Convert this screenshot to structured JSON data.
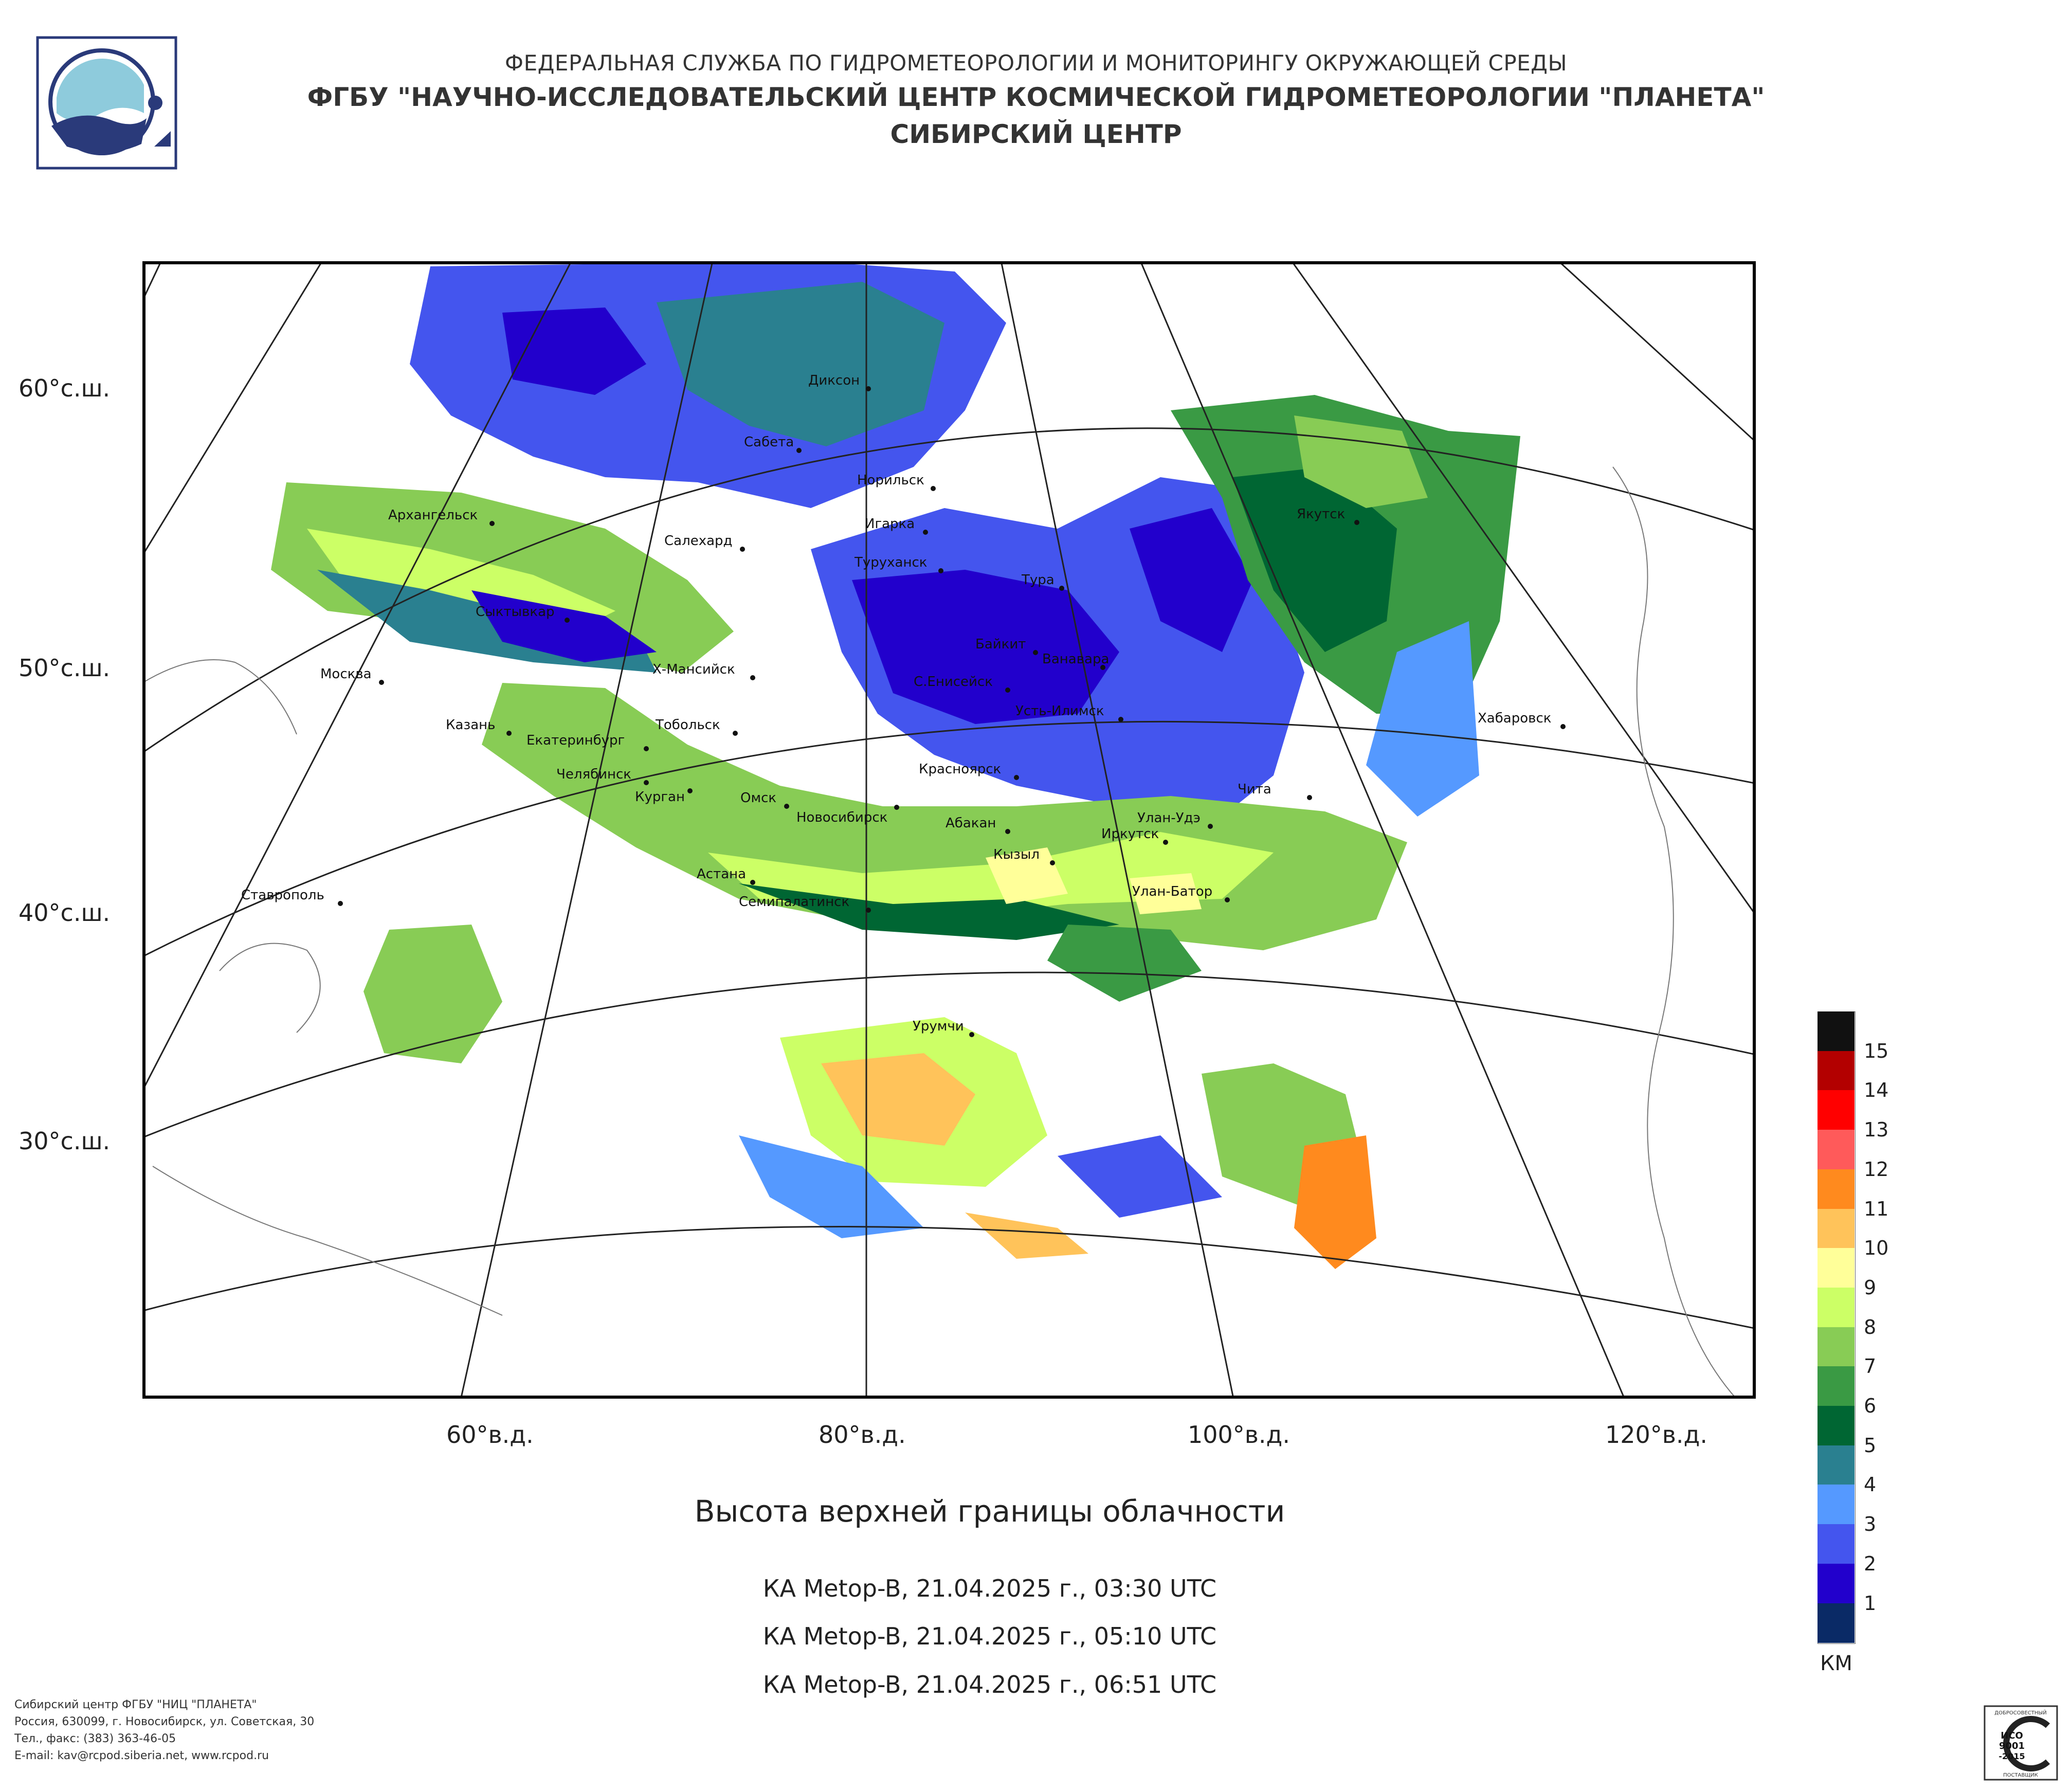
{
  "header": {
    "line1": "ФЕДЕРАЛЬНАЯ СЛУЖБА ПО ГИДРОМЕТЕОРОЛОГИИ И МОНИТОРИНГУ ОКРУЖАЮЩЕЙ СРЕДЫ",
    "line2": "ФГБУ \"НАУЧНО-ИССЛЕДОВАТЕЛЬСКИЙ ЦЕНТР КОСМИЧЕСКОЙ ГИДРОМЕТЕОРОЛОГИИ \"ПЛАНЕТА\"",
    "line3": "СИБИРСКИЙ ЦЕНТР"
  },
  "map": {
    "title": "Высота верхней границы облачности",
    "lat_labels": [
      "60°с.ш.",
      "50°с.ш.",
      "40°с.ш.",
      "30°с.ш."
    ],
    "lon_labels": [
      "60°в.д.",
      "80°в.д.",
      "100°в.д.",
      "120°в.д."
    ],
    "cities": [
      "Диксон",
      "Сабета",
      "Норильск",
      "Игарка",
      "Туруханск",
      "Тура",
      "Якутск",
      "Архангельск",
      "Салехард",
      "Сыктывкар",
      "Байкит",
      "Ванавара",
      "Москва",
      "Х-Мансийск",
      "С.Енисейск",
      "Усть-Илимск",
      "Хабаровск",
      "Казань",
      "Тобольск",
      "Екатеринбург",
      "Красноярск",
      "Челябинск",
      "Курган",
      "Омск",
      "Новосибирск",
      "Чита",
      "Абакан",
      "Улан-Удэ",
      "Иркутск",
      "Ставрополь",
      "Астана",
      "Кызыл",
      "Семипалатинск",
      "Улан-Батор",
      "Урумчи"
    ]
  },
  "passes": [
    "КА Metop-B, 21.04.2025 г., 03:30 UTC",
    "КА Metop-B, 21.04.2025 г., 05:10 UTC",
    "КА Metop-B, 21.04.2025 г., 06:51 UTC"
  ],
  "legend": {
    "units": "КМ",
    "levels": [
      "15",
      "14",
      "13",
      "12",
      "11",
      "10",
      "9",
      "8",
      "7",
      "6",
      "5",
      "4",
      "3",
      "2",
      "1"
    ],
    "colors": [
      "#111111",
      "#b30000",
      "#ff0000",
      "#ff5a5a",
      "#ff8a1e",
      "#ffc35a",
      "#ffff99",
      "#ccff66",
      "#88cc55",
      "#3a9a44",
      "#006633",
      "#2a8090",
      "#5599ff",
      "#4455ee",
      "#2200cc",
      "#0a2a66"
    ]
  },
  "footer": [
    "Сибирский центр ФГБУ \"НИЦ \"ПЛАНЕТА\"",
    "Россия, 630099, г. Новосибирск, ул. Советская, 30",
    "Тел., факс: (383) 363-46-05",
    "E-mail: kav@rcpod.siberia.net, www.rcpod.ru"
  ],
  "iso_badge": {
    "top_text": "ДОБРОСОВЕСТНЫЙ",
    "line1": "ИСО",
    "line2": "9001",
    "line3": "-2015",
    "bottom_text": "ПОСТАВЩИК"
  }
}
